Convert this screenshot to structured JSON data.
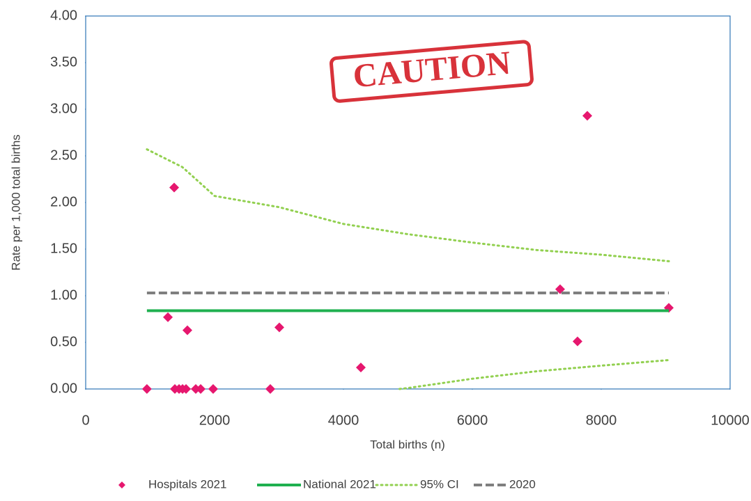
{
  "chart_data": {
    "type": "scatter",
    "title_stamp": "CAUTION",
    "x_label": "Total births (n)",
    "y_label": "Rate per 1,000 total births",
    "xlim": [
      0,
      10000
    ],
    "xticks": [
      0,
      2000,
      4000,
      6000,
      8000,
      10000
    ],
    "ylim": [
      0,
      4
    ],
    "yticks": [
      {
        "value": 0,
        "label": "0.00"
      },
      {
        "value": 0.5,
        "label": "0.50"
      },
      {
        "value": 1,
        "label": "1.00"
      },
      {
        "value": 1.5,
        "label": "1.50"
      },
      {
        "value": 2,
        "label": "2.00"
      },
      {
        "value": 2.5,
        "label": "2.50"
      },
      {
        "value": 3,
        "label": "3.00"
      },
      {
        "value": 3.5,
        "label": "3.50"
      },
      {
        "value": 4,
        "label": "4.00"
      }
    ],
    "legend": "bottom",
    "series": [
      {
        "name": "Hospitals 2021",
        "style": "diamond",
        "color": "#e6176e",
        "x": [
          950,
          1276,
          1373,
          1384,
          1449,
          1503,
          1557,
          1578,
          1708,
          1784,
          1978,
          2865,
          3005,
          4270,
          7362,
          7632,
          7784,
          9049
        ],
        "values": [
          0,
          0.77,
          2.16,
          0,
          0,
          0,
          0,
          0.63,
          0,
          0,
          0,
          0,
          0.66,
          0.23,
          1.07,
          0.51,
          2.93,
          0.87
        ]
      },
      {
        "name": "National 2021",
        "style": "solid",
        "color": "#1fb050",
        "x": [
          950,
          9049
        ],
        "values": [
          0.84,
          0.84
        ]
      },
      {
        "name": "95% CI",
        "style": "dotted",
        "color": "#92d050",
        "lines": [
          {
            "x": [
              950,
              1500,
              2000,
              3000,
              4000,
              5000,
              6000,
              7000,
              8000,
              9049
            ],
            "values": [
              2.57,
              2.38,
              2.07,
              1.95,
              1.77,
              1.66,
              1.57,
              1.49,
              1.44,
              1.37
            ]
          },
          {
            "x": [
              4870,
              5000,
              6000,
              7000,
              8000,
              9049
            ],
            "values": [
              0,
              0.01,
              0.11,
              0.19,
              0.25,
              0.31
            ]
          }
        ]
      },
      {
        "name": "2020",
        "style": "dashed",
        "color": "#7f7f7f",
        "x": [
          950,
          9049
        ],
        "values": [
          1.03,
          1.03
        ]
      }
    ]
  }
}
